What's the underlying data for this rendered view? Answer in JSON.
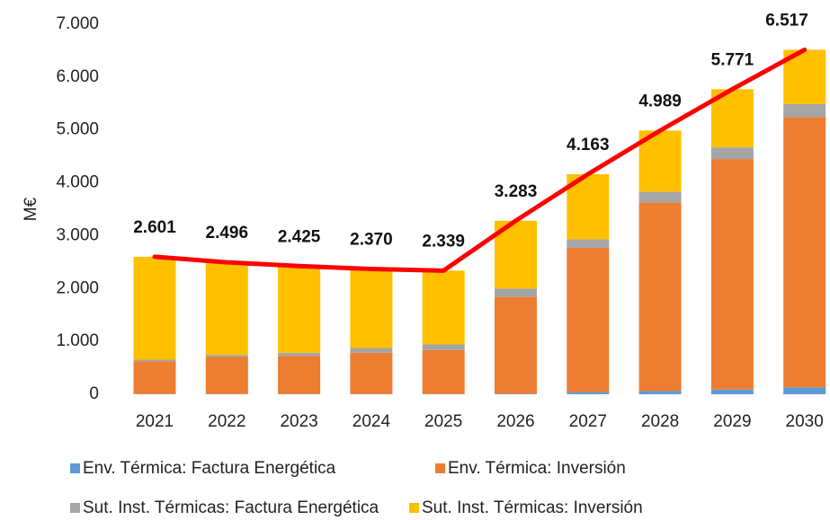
{
  "chart_data": {
    "type": "bar",
    "stacked": true,
    "y_label": "M€",
    "categories": [
      "2021",
      "2022",
      "2023",
      "2024",
      "2025",
      "2026",
      "2027",
      "2028",
      "2029",
      "2030"
    ],
    "series": [
      {
        "name": "Env. Térmica: Factura Energética",
        "color": "#5b9bd5",
        "values": [
          5,
          5,
          5,
          5,
          5,
          10,
          40,
          60,
          90,
          130
        ]
      },
      {
        "name": "Env. Térmica: Inversión",
        "color": "#ed7d31",
        "values": [
          620,
          700,
          720,
          780,
          830,
          1830,
          2730,
          3570,
          4360,
          5110
        ]
      },
      {
        "name": "Sut. Inst. Térmicas: Factura Energética",
        "color": "#a5a5a5",
        "values": [
          30,
          40,
          60,
          90,
          110,
          160,
          160,
          200,
          220,
          250
        ]
      },
      {
        "name": "Sut. Inst. Térmicas: Inversión",
        "color": "#ffc000",
        "values": [
          1946,
          1751,
          1640,
          1495,
          1394,
          1283,
          1233,
          1159,
          1101,
          1027
        ]
      },
      {
        "type": "line",
        "color": "#ff0000",
        "values": [
          2601,
          2496,
          2425,
          2370,
          2339,
          3283,
          4163,
          4989,
          5771,
          6517
        ],
        "value_labels": [
          "2.601",
          "2.496",
          "2.425",
          "2.370",
          "2.339",
          "3.283",
          "4.163",
          "4.989",
          "5.771",
          "6.517"
        ]
      }
    ],
    "ylim": [
      0,
      7000
    ],
    "yticks": [
      0,
      {
        "value": 1000,
        "label": "1.000"
      },
      {
        "value": 2000,
        "label": "2.000"
      },
      {
        "value": 3000,
        "label": "3.000"
      },
      {
        "value": 4000,
        "label": "4.000"
      },
      {
        "value": 5000,
        "label": "5.000"
      },
      {
        "value": 6000,
        "label": "6.000"
      },
      {
        "value": 7000,
        "label": "7.000"
      }
    ],
    "grid": false,
    "legend": "bottom"
  }
}
